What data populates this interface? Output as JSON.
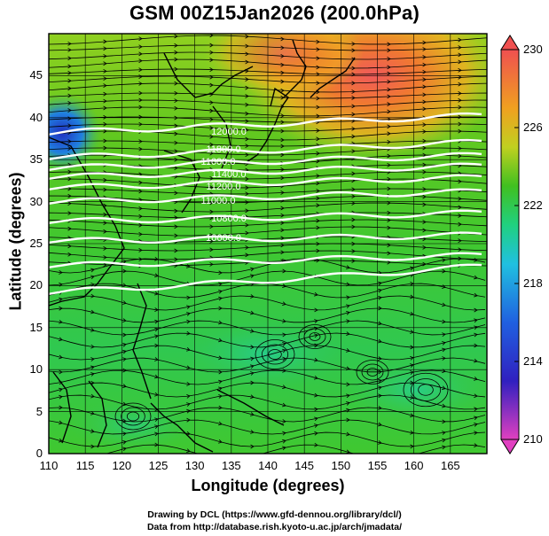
{
  "title": "GSM 00Z15Jan2026 (200.0hPa)",
  "x_axis": {
    "label": "Longitude (degrees)",
    "ticks": [
      "110",
      "115",
      "120",
      "125",
      "130",
      "135",
      "140",
      "145",
      "150",
      "155",
      "160",
      "165"
    ]
  },
  "y_axis": {
    "label": "Latitude (degrees)",
    "ticks": [
      "0",
      "5",
      "10",
      "15",
      "20",
      "25",
      "30",
      "35",
      "40",
      "45"
    ]
  },
  "colorbar": {
    "ticks": [
      "210",
      "214",
      "218",
      "222",
      "226",
      "230"
    ],
    "colors": {
      "low": "#e040c0",
      "mid_low": "#2020c0",
      "mid": "#20c0e0",
      "mid_high": "#40c020",
      "high": "#f0a020",
      "top": "#f04040"
    }
  },
  "credits": {
    "line1": "Drawing by DCL (https://www.gfd-dennou.org/library/dcl/)",
    "line2": "Data from http://database.rish.kyoto-u.ac.jp/arch/jmadata/"
  },
  "chart_data": {
    "type": "heatmap",
    "title": "GSM 00Z15Jan2026 (200.0hPa)",
    "xlabel": "Longitude (degrees)",
    "ylabel": "Latitude (degrees)",
    "xlim": [
      110,
      170
    ],
    "ylim": [
      0,
      50
    ],
    "colorbar_range": [
      210,
      230
    ],
    "colorbar_ticks": [
      210,
      214,
      218,
      222,
      226,
      230
    ],
    "contour_labels": [
      "12000.0",
      "11800.0",
      "11600.0",
      "11400.0",
      "11200.0",
      "11000.0",
      "10800.0",
      "10600.0"
    ]
  }
}
